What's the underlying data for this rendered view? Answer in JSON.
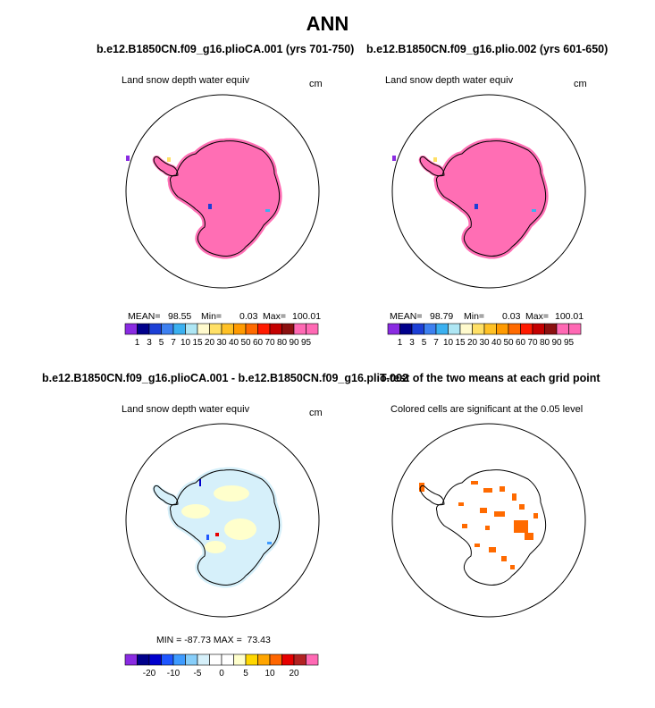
{
  "figure": {
    "title": "ANN"
  },
  "panels": [
    {
      "title": "b.e12.B1850CN.f09_g16.plioCA.001 (yrs 701-750)",
      "variable": "Land snow depth water equiv",
      "units": "cm",
      "stats": {
        "mean_label": "MEAN=",
        "mean": "98.55",
        "min_label": "Min=",
        "min": "0.03",
        "max_label": "Max=",
        "max": "100.01"
      }
    },
    {
      "title": "b.e12.B1850CN.f09_g16.plio.002 (yrs 601-650)",
      "variable": "Land snow depth water equiv",
      "units": "cm",
      "stats": {
        "mean_label": "MEAN=",
        "mean": "98.79",
        "min_label": "Min=",
        "min": "0.03",
        "max_label": "Max=",
        "max": "100.01"
      }
    },
    {
      "title": "b.e12.B1850CN.f09_g16.plioCA.001 - b.e12.B1850CN.f09_g16.plio.002",
      "variable": "Land snow depth water equiv",
      "units": "cm",
      "stats_text": "MIN = -87.73 MAX =  73.43"
    },
    {
      "title": "T-test of the two means at each grid point",
      "variable": "Colored cells are significant at the 0.05 level"
    }
  ],
  "chart_data": [
    {
      "type": "heatmap",
      "title": "b.e12.B1850CN.f09_g16.plioCA.001 (yrs 701-750)",
      "projection": "south polar stereographic",
      "field": "Land snow depth water equiv",
      "units": "cm",
      "levels": [
        1,
        3,
        5,
        7,
        10,
        15,
        20,
        30,
        40,
        50,
        60,
        70,
        80,
        90,
        95
      ],
      "mean": 98.55,
      "min": 0.03,
      "max": 100.01
    },
    {
      "type": "heatmap",
      "title": "b.e12.B1850CN.f09_g16.plio.002 (yrs 601-650)",
      "projection": "south polar stereographic",
      "field": "Land snow depth water equiv",
      "units": "cm",
      "levels": [
        1,
        3,
        5,
        7,
        10,
        15,
        20,
        30,
        40,
        50,
        60,
        70,
        80,
        90,
        95
      ],
      "mean": 98.79,
      "min": 0.03,
      "max": 100.01
    },
    {
      "type": "heatmap",
      "title": "b.e12.B1850CN.f09_g16.plioCA.001 - b.e12.B1850CN.f09_g16.plio.002",
      "projection": "south polar stereographic",
      "field": "Land snow depth water equiv",
      "units": "cm",
      "levels": [
        -20,
        -10,
        -5,
        0,
        5,
        10,
        20
      ],
      "min": -87.73,
      "max": 73.43
    },
    {
      "type": "heatmap",
      "title": "T-test of the two means at each grid point",
      "projection": "south polar stereographic",
      "note": "Colored cells are significant at the 0.05 level",
      "significance_level": 0.05
    }
  ],
  "colorbars": {
    "top": {
      "colors": [
        "#8a2be2",
        "#00008b",
        "#1c3fd6",
        "#3d80f0",
        "#3ab0f0",
        "#aee6f4",
        "#fffacd",
        "#ffe066",
        "#ffc125",
        "#ff9a00",
        "#ff6a00",
        "#ff1a00",
        "#c40000",
        "#8b1010",
        "#ff69b4",
        "#ff69b4"
      ],
      "labels": [
        "1",
        "3",
        "5",
        "7",
        "10",
        "15",
        "20",
        "30",
        "40",
        "50",
        "60",
        "70",
        "80",
        "90",
        "95"
      ]
    },
    "diff": {
      "colors": [
        "#8a2be2",
        "#00008b",
        "#0000cd",
        "#1e56ff",
        "#3e9bff",
        "#87cefa",
        "#d6f0fa",
        "#ffffff",
        "#ffffff",
        "#ffffcc",
        "#ffd700",
        "#ffa500",
        "#ff6600",
        "#e60000",
        "#b22222",
        "#ff69b4"
      ],
      "labels": [
        "-20",
        "-10",
        "-5",
        "0",
        "5",
        "10",
        "20"
      ],
      "label_positions": [
        2,
        4,
        6,
        8,
        10,
        12,
        14
      ]
    }
  },
  "colors": {
    "field_fill": "#ff6eb4",
    "diff_fill": "#d6f0fa",
    "diff_pos": "#ffffcc",
    "sig_fill": "#ff6a00",
    "coast": "#000000"
  }
}
